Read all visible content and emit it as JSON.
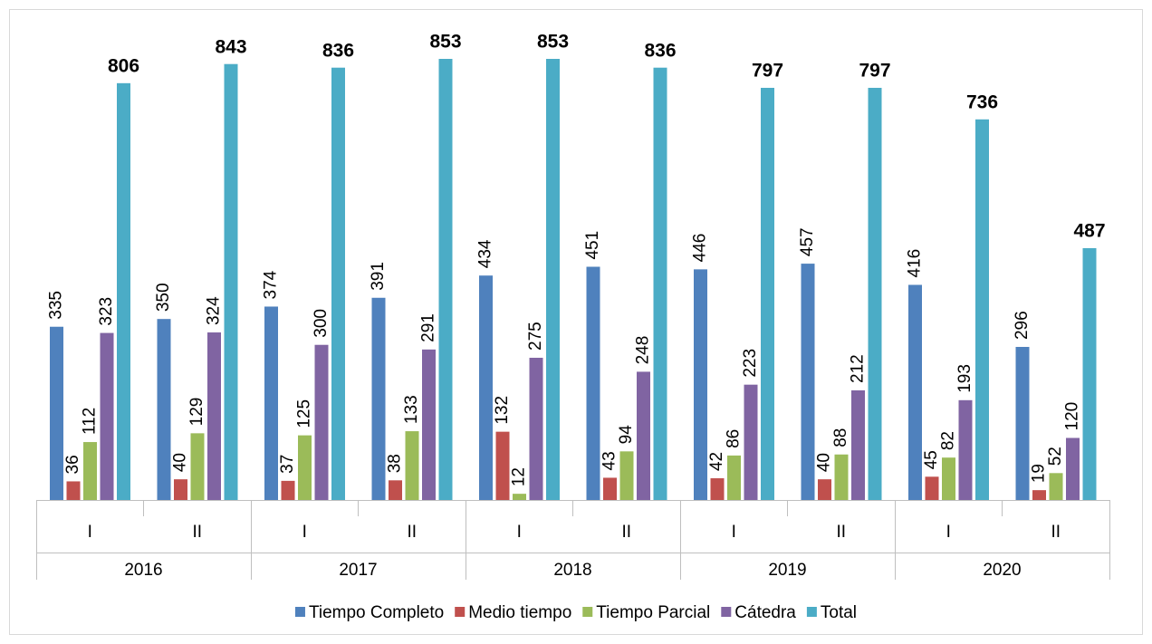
{
  "chart_data": {
    "type": "bar",
    "categories": [
      "I",
      "II",
      "I",
      "II",
      "I",
      "II",
      "I",
      "II",
      "I",
      "II"
    ],
    "years": [
      "2016",
      "2017",
      "2018",
      "2019",
      "2020"
    ],
    "series": [
      {
        "name": "Tiempo Completo",
        "color": "#4f81bd",
        "values": [
          335,
          350,
          374,
          391,
          434,
          451,
          446,
          457,
          416,
          296
        ]
      },
      {
        "name": "Medio tiempo",
        "color": "#c0504d",
        "values": [
          36,
          40,
          37,
          38,
          132,
          43,
          42,
          40,
          45,
          19
        ]
      },
      {
        "name": "Tiempo Parcial",
        "color": "#9bbb59",
        "values": [
          112,
          129,
          125,
          133,
          12,
          94,
          86,
          88,
          82,
          52
        ]
      },
      {
        "name": "Cátedra",
        "color": "#8064a2",
        "values": [
          323,
          324,
          300,
          291,
          275,
          248,
          223,
          212,
          193,
          120
        ]
      },
      {
        "name": "Total",
        "color": "#4bacc6",
        "values": [
          806,
          843,
          836,
          853,
          853,
          836,
          797,
          797,
          736,
          487
        ]
      }
    ],
    "legend": "bottom"
  }
}
